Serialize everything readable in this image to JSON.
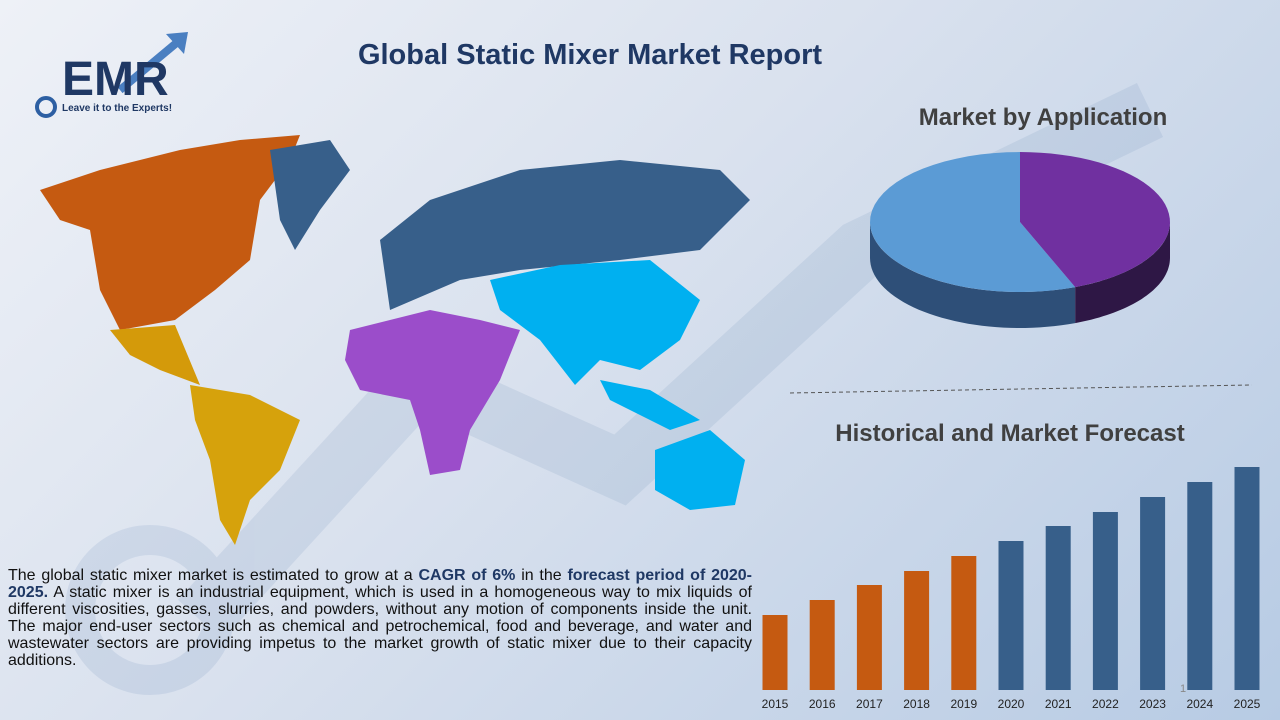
{
  "title": "Global Static Mixer Market Report",
  "logo": {
    "brand": "EMR",
    "tagline": "Leave it to the Experts!"
  },
  "description": {
    "segments": [
      {
        "text": "The global static mixer market is estimated to grow at a ",
        "bold": false
      },
      {
        "text": "CAGR of 6%",
        "bold": true
      },
      {
        "text": " in the ",
        "bold": false
      },
      {
        "text": "forecast period of 2020-2025.",
        "bold": true
      },
      {
        "text": " A static mixer is an industrial equipment, which is used in a homogeneous way to mix liquids of different viscosities, gasses, slurries, and powders, without any motion of components inside the unit. The major end-user sectors such as chemical and petrochemical, food and beverage, and water and wastewater sectors are providing impetus to the market growth of static mixer due to their capacity additions.",
        "bold": false
      }
    ]
  },
  "page_number": "1",
  "chart_data": [
    {
      "type": "pie",
      "title": "Market by Application",
      "values": [
        56,
        44
      ],
      "colors": [
        "#5b9bd5",
        "#7030a0"
      ],
      "side_colors": [
        "#2e4f78",
        "#2e1745"
      ]
    },
    {
      "type": "bar",
      "title": "Historical and Market Forecast",
      "categories": [
        "2015",
        "2016",
        "2017",
        "2018",
        "2019",
        "2020",
        "2021",
        "2022",
        "2023",
        "2024",
        "2025"
      ],
      "values": [
        75,
        90,
        105,
        119,
        134,
        149,
        164,
        178,
        193,
        208,
        223
      ],
      "colors": [
        "#c55a11",
        "#c55a11",
        "#c55a11",
        "#c55a11",
        "#c55a11",
        "#375f8a",
        "#375f8a",
        "#375f8a",
        "#375f8a",
        "#375f8a",
        "#375f8a"
      ]
    }
  ]
}
